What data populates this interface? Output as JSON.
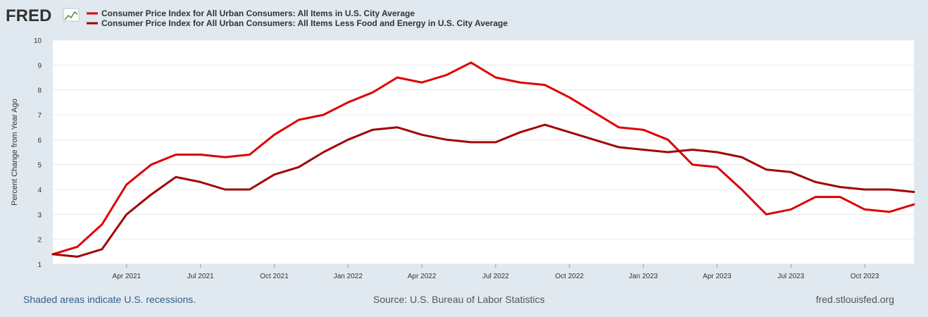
{
  "brand": {
    "logo_text": "FRED"
  },
  "colors": {
    "headline": "#dd0000",
    "core": "#a10505",
    "background": "#e1e9f0",
    "plot_bg": "#ffffff",
    "grid": "#e8e8e8",
    "footer_link": "#335e8a"
  },
  "footer": {
    "note": "Shaded areas indicate U.S. recessions.",
    "source": "Source: U.S. Bureau of Labor Statistics",
    "site": "fred.stlouisfed.org"
  },
  "chart_data": {
    "type": "line",
    "title": "",
    "xlabel": "",
    "ylabel": "Percent Change from Year Ago",
    "ylim": [
      1,
      10
    ],
    "y_ticks": [
      1,
      2,
      3,
      4,
      5,
      6,
      7,
      8,
      9,
      10
    ],
    "x": [
      "2021-01",
      "2021-02",
      "2021-03",
      "2021-04",
      "2021-05",
      "2021-06",
      "2021-07",
      "2021-08",
      "2021-09",
      "2021-10",
      "2021-11",
      "2021-12",
      "2022-01",
      "2022-02",
      "2022-03",
      "2022-04",
      "2022-05",
      "2022-06",
      "2022-07",
      "2022-08",
      "2022-09",
      "2022-10",
      "2022-11",
      "2022-12",
      "2023-01",
      "2023-02",
      "2023-03",
      "2023-04",
      "2023-05",
      "2023-06",
      "2023-07",
      "2023-08",
      "2023-09",
      "2023-10",
      "2023-11",
      "2023-12"
    ],
    "x_ticks": [
      {
        "label": "Apr 2021",
        "at": "2021-04"
      },
      {
        "label": "Jul 2021",
        "at": "2021-07"
      },
      {
        "label": "Oct 2021",
        "at": "2021-10"
      },
      {
        "label": "Jan 2022",
        "at": "2022-01"
      },
      {
        "label": "Apr 2022",
        "at": "2022-04"
      },
      {
        "label": "Jul 2022",
        "at": "2022-07"
      },
      {
        "label": "Oct 2022",
        "at": "2022-10"
      },
      {
        "label": "Jan 2023",
        "at": "2023-01"
      },
      {
        "label": "Apr 2023",
        "at": "2023-04"
      },
      {
        "label": "Jul 2023",
        "at": "2023-07"
      },
      {
        "label": "Oct 2023",
        "at": "2023-10"
      }
    ],
    "series": [
      {
        "name": "Consumer Price Index for All Urban Consumers: All Items in U.S. City Average",
        "color": "#dd0000",
        "values": [
          1.4,
          1.7,
          2.6,
          4.2,
          5.0,
          5.4,
          5.4,
          5.3,
          5.4,
          6.2,
          6.8,
          7.0,
          7.5,
          7.9,
          8.5,
          8.3,
          8.6,
          9.1,
          8.5,
          8.3,
          8.2,
          7.7,
          7.1,
          6.5,
          6.4,
          6.0,
          5.0,
          4.9,
          4.0,
          3.0,
          3.2,
          3.7,
          3.7,
          3.2,
          3.1,
          3.4
        ]
      },
      {
        "name": "Consumer Price Index for All Urban Consumers: All Items Less Food and Energy in U.S. City Average",
        "color": "#a10505",
        "values": [
          1.4,
          1.3,
          1.6,
          3.0,
          3.8,
          4.5,
          4.3,
          4.0,
          4.0,
          4.6,
          4.9,
          5.5,
          6.0,
          6.4,
          6.5,
          6.2,
          6.0,
          5.9,
          5.9,
          6.3,
          6.6,
          6.3,
          6.0,
          5.7,
          5.6,
          5.5,
          5.6,
          5.5,
          5.3,
          4.8,
          4.7,
          4.3,
          4.1,
          4.0,
          4.0,
          3.9
        ]
      }
    ],
    "grid": true,
    "legend": "top-left"
  }
}
